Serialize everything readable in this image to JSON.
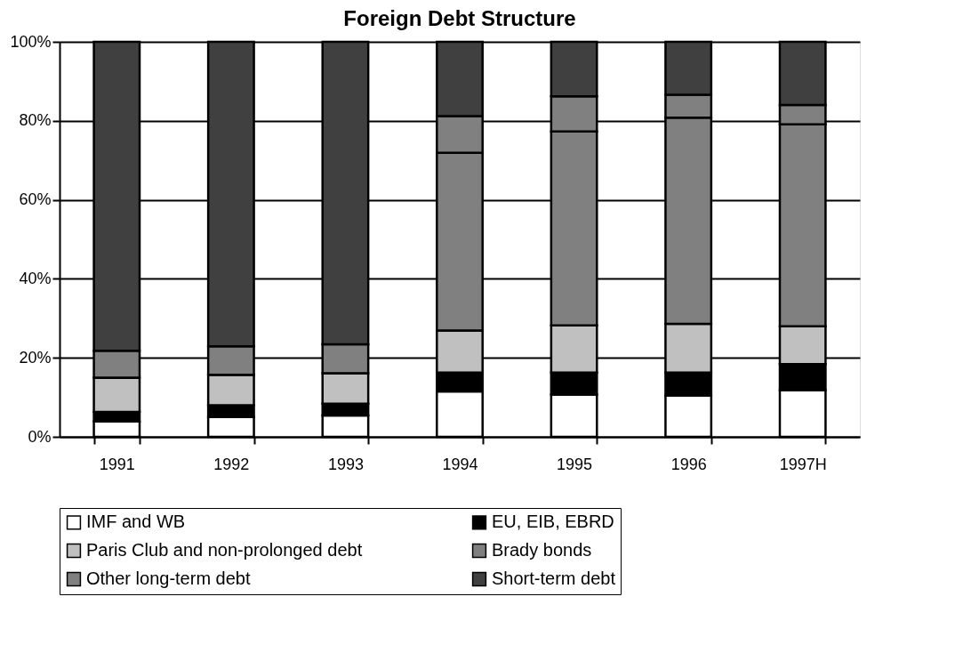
{
  "chart_data": {
    "type": "bar",
    "title": "Foreign Debt Structure",
    "stacked": true,
    "categories": [
      "1991",
      "1992",
      "1993",
      "1994",
      "1995",
      "1996",
      "1997H"
    ],
    "series": [
      {
        "name": "IMF and WB",
        "color": "#ffffff",
        "values": [
          3.9,
          5.0,
          5.4,
          11.5,
          10.7,
          10.5,
          11.8
        ]
      },
      {
        "name": "EU, EIB, EBRD",
        "color": "#000000",
        "values": [
          2.4,
          3.0,
          3.0,
          4.8,
          5.6,
          5.8,
          6.6
        ]
      },
      {
        "name": "Paris Club and non-prolonged debt",
        "color": "#c0c0c0",
        "values": [
          8.7,
          7.7,
          7.7,
          10.6,
          11.9,
          12.3,
          9.6
        ]
      },
      {
        "name": "Brady bonds",
        "color": "#808080",
        "values": [
          0,
          0,
          0,
          45.0,
          49.1,
          52.2,
          51.1
        ]
      },
      {
        "name": "Other long-term debt",
        "color": "#808080",
        "values": [
          6.8,
          7.2,
          7.3,
          9.3,
          8.9,
          5.8,
          4.9
        ]
      },
      {
        "name": "Short-term debt",
        "color": "#404040",
        "values": [
          78.2,
          77.1,
          76.6,
          18.8,
          13.8,
          13.4,
          16.0
        ]
      }
    ],
    "ylim": [
      0,
      100
    ],
    "yticks": [
      {
        "value": 0,
        "label": "0%"
      },
      {
        "value": 20,
        "label": "20%"
      },
      {
        "value": 40,
        "label": "40%"
      },
      {
        "value": 60,
        "label": "60%"
      },
      {
        "value": 80,
        "label": "80%"
      },
      {
        "value": 100,
        "label": "100%"
      }
    ],
    "grid": "y",
    "legend": "bottom"
  }
}
